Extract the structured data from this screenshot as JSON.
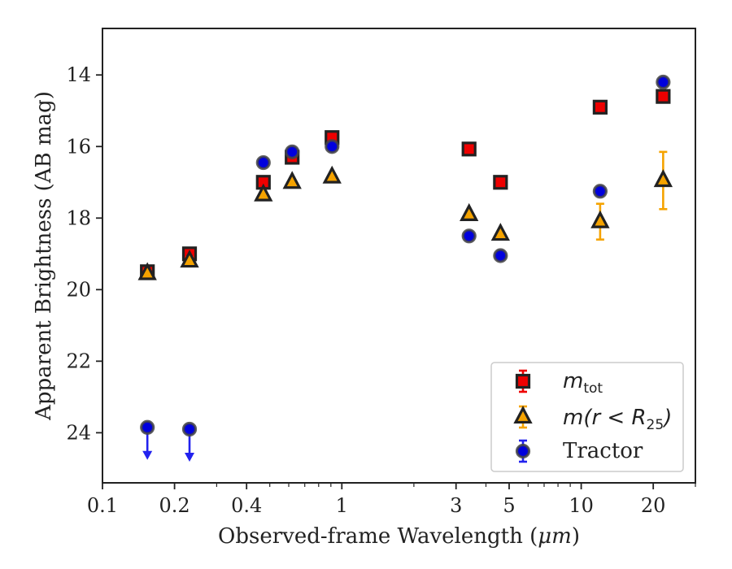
{
  "chart_data": {
    "type": "scatter",
    "xlabel_text": "Observed-frame Wavelength (",
    "xlabel_unit": "μm",
    "xlabel_close": ")",
    "ylabel": "Apparent Brightness (AB mag)",
    "x_scale": "log",
    "xlim": [
      0.1,
      30
    ],
    "ylim": [
      25.4,
      12.7
    ],
    "y_inverted": true,
    "grid": false,
    "legend_position": "lower right",
    "x_ticks": [
      {
        "value": 0.1,
        "label": "0.1"
      },
      {
        "value": 0.2,
        "label": "0.2"
      },
      {
        "value": 0.4,
        "label": "0.4"
      },
      {
        "value": 1,
        "label": "1"
      },
      {
        "value": 3,
        "label": "3"
      },
      {
        "value": 5,
        "label": "5"
      },
      {
        "value": 10,
        "label": "10"
      },
      {
        "value": 20,
        "label": "20"
      }
    ],
    "x_minor_ticks": [
      0.3,
      0.5,
      0.6,
      0.7,
      0.8,
      0.9,
      2,
      4,
      6,
      7,
      8,
      9,
      30
    ],
    "y_ticks": [
      {
        "value": 14,
        "label": "14"
      },
      {
        "value": 16,
        "label": "16"
      },
      {
        "value": 18,
        "label": "18"
      },
      {
        "value": 20,
        "label": "20"
      },
      {
        "value": 22,
        "label": "22"
      },
      {
        "value": 24,
        "label": "24"
      }
    ],
    "series": [
      {
        "key": "mtot",
        "legend_main": "m",
        "legend_sub": "tot",
        "legend_sub_after": "",
        "marker": "square",
        "face_color": "#ee0000",
        "edge_color": "#222222",
        "error_color": "#ee0000",
        "points": [
          {
            "x": 0.154,
            "y": 19.5,
            "err": 0.1
          },
          {
            "x": 0.231,
            "y": 19.0,
            "err": 0.1
          },
          {
            "x": 0.47,
            "y": 17.0,
            "err": 0.05
          },
          {
            "x": 0.62,
            "y": 16.3,
            "err": 0.05
          },
          {
            "x": 0.91,
            "y": 15.75,
            "err": 0.05
          },
          {
            "x": 3.4,
            "y": 16.07,
            "err": 0.05
          },
          {
            "x": 4.6,
            "y": 17.0,
            "err": 0.05
          },
          {
            "x": 12.0,
            "y": 14.9,
            "err": 0.05
          },
          {
            "x": 22.0,
            "y": 14.6,
            "err": 0.05
          }
        ]
      },
      {
        "key": "m_r25",
        "legend_main": "m",
        "legend_sub": "25",
        "legend_sub_after": ")",
        "legend_mid": "(r < R",
        "marker": "triangle",
        "face_color": "#f5a300",
        "edge_color": "#222222",
        "error_color": "#f5a300",
        "points": [
          {
            "x": 0.154,
            "y": 19.55,
            "err": 0.1
          },
          {
            "x": 0.231,
            "y": 19.2,
            "err": 0.1
          },
          {
            "x": 0.47,
            "y": 17.35,
            "err": 0.05
          },
          {
            "x": 0.62,
            "y": 17.0,
            "err": 0.05
          },
          {
            "x": 0.91,
            "y": 16.85,
            "err": 0.05
          },
          {
            "x": 3.4,
            "y": 17.9,
            "err": 0.05
          },
          {
            "x": 4.6,
            "y": 18.45,
            "err": 0.05
          },
          {
            "x": 12.0,
            "y": 18.1,
            "err": 0.5
          },
          {
            "x": 22.0,
            "y": 16.95,
            "err": 0.8
          }
        ]
      },
      {
        "key": "tractor",
        "legend_main": "Tractor",
        "marker": "circle",
        "face_color": "#0000dd",
        "edge_color": "#444444",
        "error_color": "#2222ee",
        "points": [
          {
            "x": 0.154,
            "y": 23.85,
            "upper_limit": true
          },
          {
            "x": 0.231,
            "y": 23.9,
            "upper_limit": true
          },
          {
            "x": 0.47,
            "y": 16.45,
            "err": 0.05
          },
          {
            "x": 0.62,
            "y": 16.15,
            "err": 0.05
          },
          {
            "x": 0.91,
            "y": 16.0,
            "err": 0.05
          },
          {
            "x": 3.4,
            "y": 18.5,
            "err": 0.05
          },
          {
            "x": 4.6,
            "y": 19.05,
            "err": 0.05
          },
          {
            "x": 12.0,
            "y": 17.25,
            "err": 0.05
          },
          {
            "x": 22.0,
            "y": 14.2,
            "err": 0.05
          }
        ]
      }
    ]
  }
}
